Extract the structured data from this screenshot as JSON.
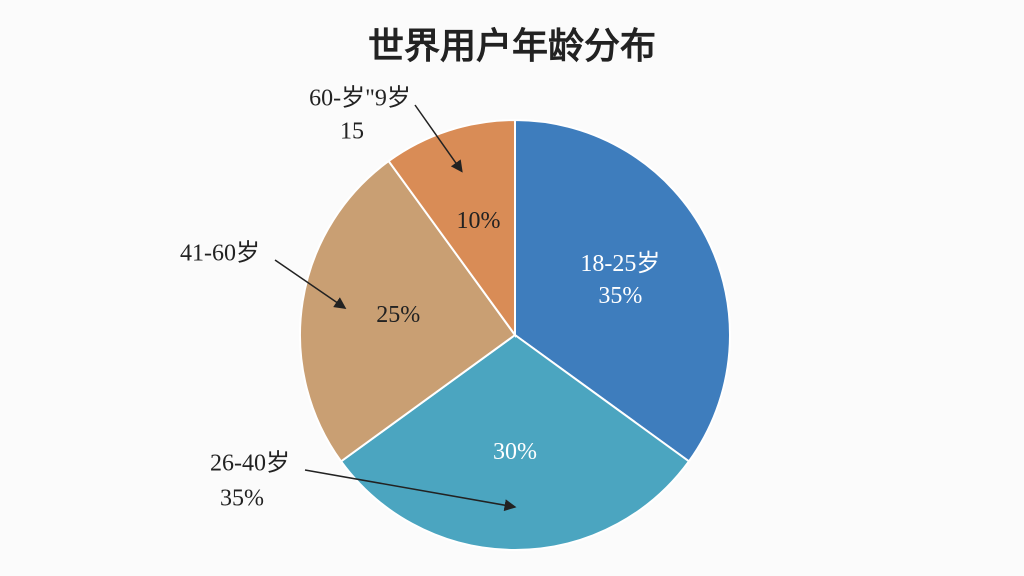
{
  "chart_data": {
    "type": "pie",
    "title": "世界用户年龄分布",
    "categories": [
      "18-25岁",
      "26-40岁",
      "41-60岁",
      "60-岁\"9岁"
    ],
    "values": [
      35,
      30,
      25,
      10
    ],
    "value_labels": [
      "35%",
      "30%",
      "25%",
      "10%"
    ],
    "colors": [
      "#3e7dbd",
      "#4ba5c0",
      "#c99f73",
      "#d98c56"
    ],
    "annotations": [
      "35%",
      "15"
    ]
  }
}
